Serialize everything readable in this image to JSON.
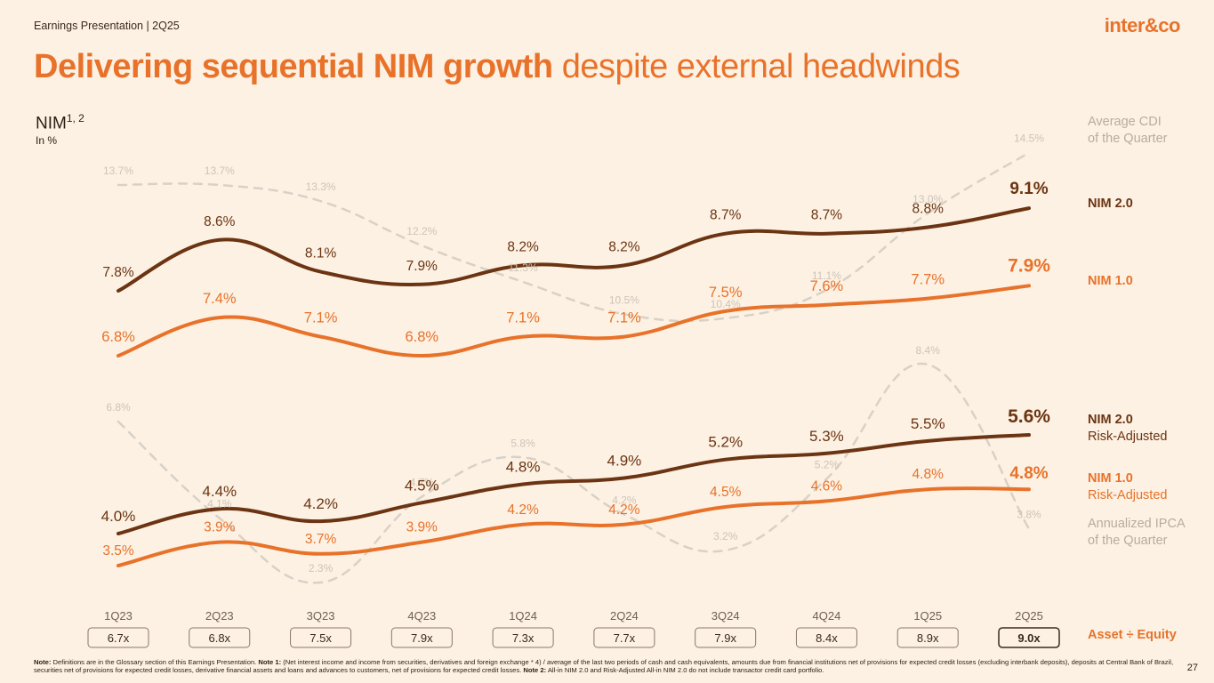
{
  "header": {
    "text": "Earnings Presentation | 2Q25",
    "logo": "inter&co",
    "page_number": "27"
  },
  "title": {
    "bold": "Delivering sequential NIM growth",
    "rest": " despite external headwinds"
  },
  "nim_label": {
    "main": "NIM",
    "sup": "1, 2",
    "sub": "In %"
  },
  "legend": {
    "cdi_line1": "Average CDI",
    "cdi_line2": "of the Quarter",
    "nim2": "NIM 2.0",
    "nim1": "NIM 1.0",
    "nim2ra_line1": "NIM 2.0",
    "nim2ra_line2": "Risk-Adjusted",
    "nim1ra_line1": "NIM 1.0",
    "nim1ra_line2": "Risk-Adjusted",
    "ipca_line1": "Annualized IPCA",
    "ipca_line2": "of the Quarter",
    "asset_equity": "Asset ÷ Equity"
  },
  "colors": {
    "nim2": "#6b3413",
    "nim1": "#e8722a",
    "cdi": "#d9d1c7",
    "ipca": "#d9d1c7",
    "background": "#fcf1e3"
  },
  "chart_data": {
    "type": "line",
    "categories": [
      "1Q23",
      "2Q23",
      "3Q23",
      "4Q23",
      "1Q24",
      "2Q24",
      "3Q24",
      "4Q24",
      "1Q25",
      "2Q25"
    ],
    "series": [
      {
        "name": "NIM 2.0",
        "values": [
          7.8,
          8.6,
          8.1,
          7.9,
          8.2,
          8.2,
          8.7,
          8.7,
          8.8,
          9.1
        ],
        "labels": [
          "7.8%",
          "8.6%",
          "8.1%",
          "7.9%",
          "8.2%",
          "8.2%",
          "8.7%",
          "8.7%",
          "8.8%",
          "9.1%"
        ]
      },
      {
        "name": "NIM 1.0",
        "values": [
          6.8,
          7.4,
          7.1,
          6.8,
          7.1,
          7.1,
          7.5,
          7.6,
          7.7,
          7.9
        ],
        "labels": [
          "6.8%",
          "7.4%",
          "7.1%",
          "6.8%",
          "7.1%",
          "7.1%",
          "7.5%",
          "7.6%",
          "7.7%",
          "7.9%"
        ]
      },
      {
        "name": "NIM 2.0 Risk-Adjusted",
        "values": [
          4.0,
          4.4,
          4.2,
          4.5,
          4.8,
          4.9,
          5.2,
          5.3,
          5.5,
          5.6
        ],
        "labels": [
          "4.0%",
          "4.4%",
          "4.2%",
          "4.5%",
          "4.8%",
          "4.9%",
          "5.2%",
          "5.3%",
          "5.5%",
          "5.6%"
        ]
      },
      {
        "name": "NIM 1.0 Risk-Adjusted",
        "values": [
          3.5,
          3.9,
          3.7,
          3.9,
          4.2,
          4.2,
          4.5,
          4.6,
          4.8,
          4.8
        ],
        "labels": [
          "3.5%",
          "3.9%",
          "3.7%",
          "3.9%",
          "4.2%",
          "4.2%",
          "4.5%",
          "4.6%",
          "4.8%",
          "4.8%"
        ]
      },
      {
        "name": "Average CDI of the Quarter",
        "values": [
          13.7,
          13.7,
          13.3,
          12.2,
          11.3,
          10.5,
          10.4,
          11.1,
          13.0,
          14.5
        ],
        "labels": [
          "13.7%",
          "13.7%",
          "13.3%",
          "12.2%",
          "11.3%",
          "10.5%",
          "10.4%",
          "11.1%",
          "13.0%",
          "14.5%"
        ]
      },
      {
        "name": "Annualized IPCA of the Quarter",
        "values": [
          6.8,
          4.1,
          2.3,
          4.7,
          5.8,
          4.2,
          3.2,
          5.2,
          8.4,
          3.8
        ],
        "labels": [
          "6.8%",
          "4.1%",
          "2.3%",
          "4.7%",
          "5.8%",
          "4.2%",
          "3.2%",
          "5.2%",
          "8.4%",
          "3.8%"
        ]
      }
    ],
    "asset_equity": [
      "6.7x",
      "6.8x",
      "7.5x",
      "7.9x",
      "7.3x",
      "7.7x",
      "7.9x",
      "8.4x",
      "8.9x",
      "9.0x"
    ],
    "title": "NIM",
    "ylabel": "In %"
  },
  "footnote": {
    "note_label": "Note:",
    "note_text": " Definitions are in the Glossary section of this Earnings Presentation. ",
    "note1_label": "Note 1:",
    "note1_text": " (Net interest income and income from securities, derivatives and foreign exchange * 4) / average of the last two periods of cash and cash equivalents, amounts due from financial institutions net of provisions for expected credit losses (excluding interbank deposits), deposits at Central Bank of Brazil, securities net of provisions for expected credit losses, derivative financial assets and loans and advances to customers, net of provisions for expected credit losses. ",
    "note2_label": "Note 2:",
    "note2_text": " All-in NIM 2.0 and Risk-Adjusted All-in NIM 2.0 do not include transactor credit card portfolio."
  }
}
